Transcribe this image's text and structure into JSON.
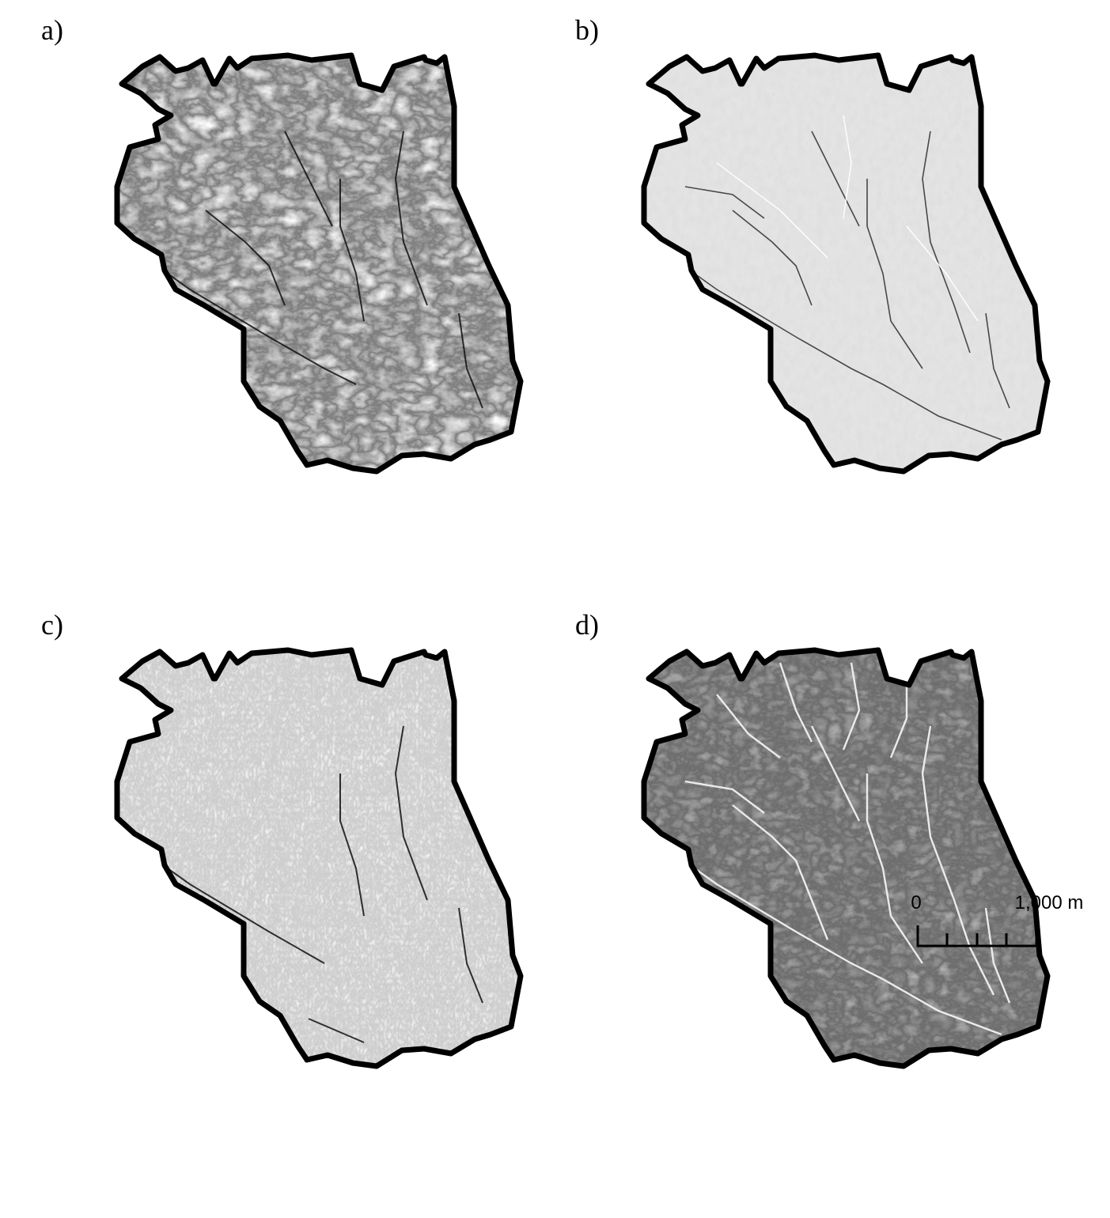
{
  "panels": [
    {
      "id": "a",
      "label": "a)"
    },
    {
      "id": "b",
      "label": "b)"
    },
    {
      "id": "c",
      "label": "c)"
    },
    {
      "id": "d",
      "label": "d)"
    }
  ],
  "scale_bar": {
    "start_label": "0",
    "end_label": "1,000 m"
  },
  "colors": {
    "outline": "#000000",
    "panel_a_fill": "#6e6e6e",
    "panel_b_fill": "#bdbdbd",
    "panel_c_fill": "#b4b4b4",
    "panel_d_fill": "#2e2e2e"
  }
}
